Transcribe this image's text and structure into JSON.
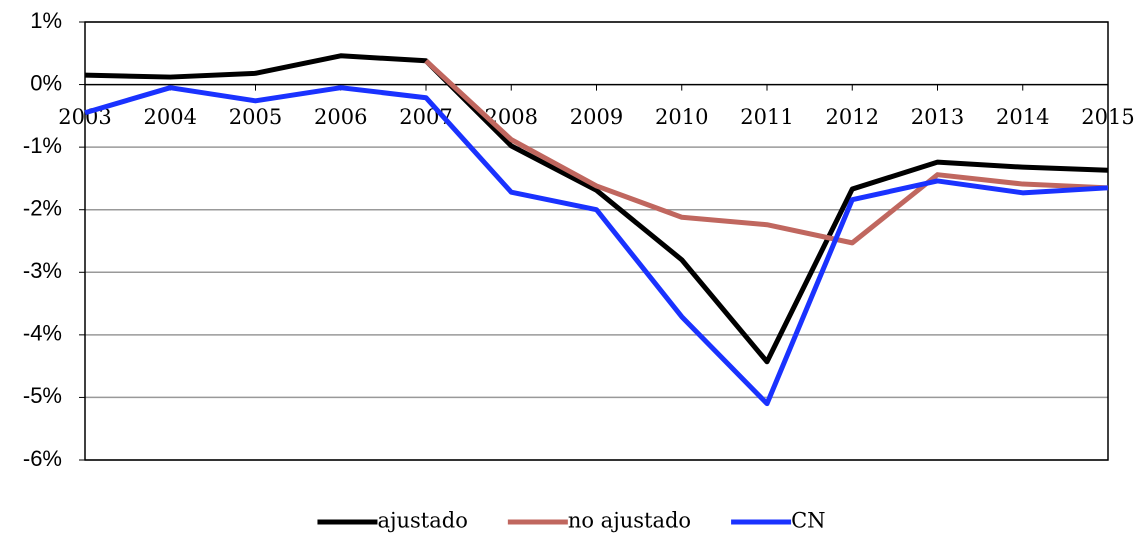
{
  "chart_data": {
    "type": "line",
    "x": [
      2003,
      2004,
      2005,
      2006,
      2007,
      2008,
      2009,
      2010,
      2011,
      2012,
      2013,
      2014,
      2015
    ],
    "xlim": [
      2003,
      2015
    ],
    "xticks": [
      2003,
      2004,
      2005,
      2006,
      2007,
      2008,
      2009,
      2010,
      2011,
      2012,
      2013,
      2014,
      2015
    ],
    "ylim": [
      -6,
      1
    ],
    "yticks": [
      {
        "value": 1,
        "label": "1%"
      },
      {
        "value": 0,
        "label": "0%"
      },
      {
        "value": -1,
        "label": "-1%"
      },
      {
        "value": -2,
        "label": "-2%"
      },
      {
        "value": -3,
        "label": "-3%"
      },
      {
        "value": -4,
        "label": "-4%"
      },
      {
        "value": -5,
        "label": "-5%"
      },
      {
        "value": -6,
        "label": "-6%"
      }
    ],
    "grid": true,
    "legend": "bottom",
    "series": [
      {
        "name": "ajustado",
        "color": "#000000",
        "values": [
          0.15,
          0.12,
          0.18,
          0.46,
          0.38,
          -0.98,
          -1.69,
          -2.8,
          -4.43,
          -1.67,
          -1.24,
          -1.32,
          -1.37
        ]
      },
      {
        "name": "no ajustado",
        "color": "#c0675f",
        "values": [
          null,
          null,
          null,
          null,
          0.38,
          -0.88,
          -1.62,
          -2.12,
          -2.24,
          -2.53,
          -1.44,
          -1.59,
          -1.65
        ]
      },
      {
        "name": "CN",
        "color": "#1a32ff",
        "values": [
          -0.45,
          -0.05,
          -0.26,
          -0.05,
          -0.21,
          -1.72,
          -2.0,
          -3.71,
          -5.1,
          -1.84,
          -1.54,
          -1.73,
          -1.65
        ]
      }
    ]
  }
}
